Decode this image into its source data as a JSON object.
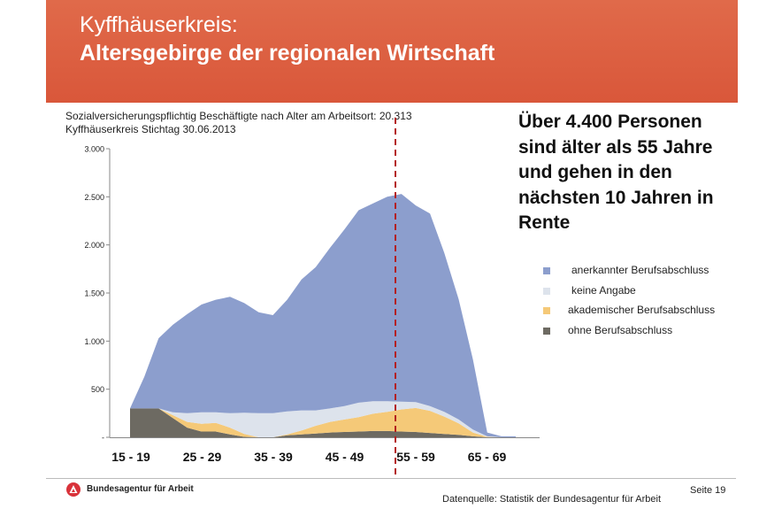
{
  "header": {
    "title_line1": "Kyffhäuserkreis:",
    "title_line2": "Altersgebirge der regionalen Wirtschaft"
  },
  "subtitle": {
    "line1": "Sozialversicherungspflichtig Beschäftigte nach Alter am Arbeitsort: 20.313",
    "line2": "Kyffhäuserkreis Stichtag 30.06.2013"
  },
  "callout": {
    "lines": [
      "Über 4.400 Personen",
      "sind älter als 55 Jahre",
      "und gehen in den",
      "nächsten 10 Jahren in",
      "Rente"
    ]
  },
  "chart_data": {
    "type": "area",
    "stacked": true,
    "x": [
      15,
      17,
      19,
      21,
      23,
      25,
      27,
      29,
      31,
      33,
      35,
      37,
      39,
      41,
      43,
      45,
      47,
      49,
      51,
      53,
      55,
      57,
      59,
      61,
      63,
      65,
      67,
      69
    ],
    "tick_labels": [
      "15 - 19",
      "25 - 29",
      "35 - 39",
      "45 - 49",
      "55 - 59",
      "65 - 69"
    ],
    "yticks": [
      0,
      500,
      1000,
      1500,
      2000,
      2500,
      3000
    ],
    "ytick_labels": [
      "-",
      "500",
      "1.000",
      "1.500",
      "2.000",
      "2.500",
      "3.000"
    ],
    "ylim": [
      0,
      3000
    ],
    "marker_line_between": "age 54/55",
    "series": [
      {
        "name": "ohne Berufsabschluss",
        "color": "#6d6a62",
        "values": [
          300,
          300,
          300,
          200,
          100,
          60,
          60,
          30,
          5,
          0,
          0,
          20,
          30,
          40,
          50,
          55,
          60,
          65,
          65,
          60,
          55,
          45,
          35,
          25,
          10,
          0,
          0,
          0
        ]
      },
      {
        "name": "akademischer Berufsabschluss",
        "color": "#f5c978",
        "values": [
          0,
          0,
          0,
          30,
          60,
          80,
          90,
          70,
          30,
          0,
          0,
          10,
          40,
          80,
          110,
          130,
          150,
          180,
          200,
          230,
          250,
          230,
          180,
          120,
          40,
          5,
          0,
          0
        ]
      },
      {
        "name": "keine Angabe",
        "color": "#dde3ec",
        "values": [
          0,
          0,
          0,
          30,
          90,
          120,
          110,
          150,
          220,
          250,
          250,
          240,
          210,
          160,
          140,
          140,
          150,
          130,
          110,
          80,
          60,
          50,
          50,
          40,
          30,
          5,
          0,
          0
        ]
      },
      {
        "name": "anerkannter Berufsabschluss",
        "color": "#8c9ecd",
        "values": [
          0,
          330,
          730,
          910,
          1030,
          1120,
          1170,
          1210,
          1140,
          1050,
          1020,
          1160,
          1360,
          1490,
          1670,
          1835,
          2000,
          2055,
          2125,
          2160,
          2045,
          2000,
          1650,
          1250,
          730,
          40,
          10,
          10
        ]
      }
    ]
  },
  "legend": {
    "items": [
      {
        "label": "anerkannter Berufsabschluss",
        "color": "#8c9ecd"
      },
      {
        "label": "keine Angabe",
        "color": "#dde3ec"
      },
      {
        "label": "akademischer Berufsabschluss",
        "color": "#f5c978"
      },
      {
        "label": "ohne Berufsabschluss",
        "color": "#6d6a62"
      }
    ]
  },
  "footer": {
    "org": "Bundesagentur für Arbeit",
    "source": "Datenquelle: Statistik der Bundesagentur für Arbeit",
    "page": "Seite 19"
  },
  "colors": {
    "banner": "#d9573a",
    "marker_line": "#b42020"
  }
}
